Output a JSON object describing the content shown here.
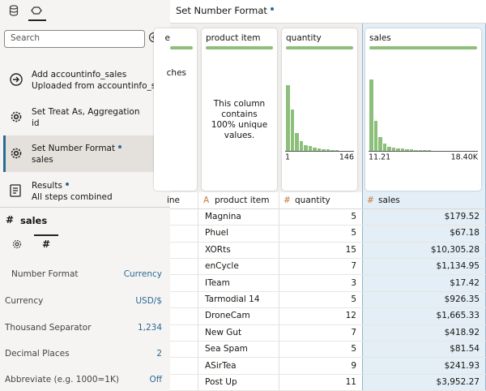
{
  "sidebar": {
    "search_placeholder": "Search",
    "steps": [
      {
        "title": "Add accountinfo_sales",
        "subtitle": "Uploaded from accountinfo_sale..."
      },
      {
        "title": "Set Treat As, Aggregation",
        "subtitle": "id"
      },
      {
        "title": "Set Number Format",
        "subtitle": "sales",
        "selected": true,
        "dot": true
      },
      {
        "title": "Results",
        "subtitle": "All steps combined",
        "dot": true
      }
    ],
    "properties": {
      "icon": "#",
      "title": "sales",
      "tab_icon": "#",
      "rows": [
        {
          "label": "Number Format",
          "value": "Currency"
        },
        {
          "label": "Currency",
          "value": "USD/$"
        },
        {
          "label": "Thousand Separator",
          "value": "1,234"
        },
        {
          "label": "Decimal Places",
          "value": "2"
        },
        {
          "label": "Abbreviate (e.g. 1000=1K)",
          "value": "Off"
        }
      ]
    }
  },
  "main": {
    "title": "Set Number Format",
    "cards": [
      {
        "title": "e",
        "body": "ches"
      },
      {
        "title": "product item",
        "body": "This column contains 100% unique values."
      },
      {
        "title": "quantity",
        "histogram": {
          "counts": [
            80,
            50,
            22,
            12,
            7,
            6,
            4,
            3,
            2,
            2,
            1,
            1
          ],
          "min": "1",
          "max": "146"
        }
      },
      {
        "title": "sales",
        "histogram": {
          "counts": [
            87,
            37,
            17,
            9,
            5,
            4,
            3,
            3,
            2,
            2,
            1,
            1,
            1,
            1
          ],
          "min": "11.21",
          "max": "18.40K"
        }
      }
    ],
    "columns": [
      {
        "name": "ine"
      },
      {
        "icon": "A",
        "name": "product item"
      },
      {
        "icon": "#",
        "name": "quantity"
      },
      {
        "icon": "#",
        "name": "sales"
      }
    ],
    "rows": [
      [
        "Magnina",
        5,
        "$179.52"
      ],
      [
        "Phuel",
        5,
        "$67.18"
      ],
      [
        "XORts",
        15,
        "$10,305.28"
      ],
      [
        "enCycle",
        7,
        "$1,134.95"
      ],
      [
        "ITeam",
        3,
        "$17.42"
      ],
      [
        "Tarmodial 14",
        5,
        "$926.35"
      ],
      [
        "DroneCam",
        12,
        "$1,665.33"
      ],
      [
        "New Gut",
        7,
        "$418.92"
      ],
      [
        "Sea Spam",
        5,
        "$81.54"
      ],
      [
        "ASirTea",
        9,
        "$241.93"
      ],
      [
        "Post Up",
        11,
        "$3,952.27"
      ]
    ]
  }
}
